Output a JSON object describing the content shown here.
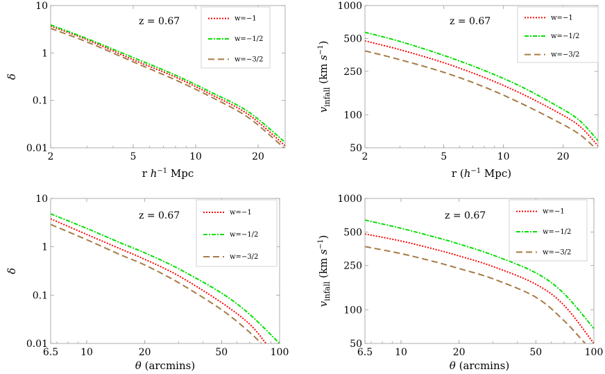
{
  "legend": [
    "w=−1",
    "w=−1/2",
    "w=−3/2"
  ],
  "series_styles": [
    {
      "color": "#ff0000",
      "dash": "2,2"
    },
    {
      "color": "#00e000",
      "dash": "6,2,2,2"
    },
    {
      "color": "#a67a45",
      "dash": "9,5"
    }
  ],
  "chart_data": [
    {
      "type": "line",
      "annotation": "z = 0.67",
      "xlabel": "r h⁻¹ Mpc",
      "ylabel": "δ",
      "xscale": "log",
      "yscale": "log",
      "xlim": [
        2,
        27
      ],
      "ylim": [
        0.01,
        10
      ],
      "xticks": [
        2,
        5,
        10,
        20
      ],
      "xticklabels": [
        "2",
        "5",
        "10",
        "20"
      ],
      "yticks": [
        0.01,
        0.1,
        1,
        10
      ],
      "yticklabels": [
        "0.01",
        "0.1",
        "1",
        "10"
      ],
      "legend_position": "top-right",
      "series": [
        {
          "name": "w=−1",
          "x": [
            2,
            3,
            5,
            8,
            12,
            18,
            27
          ],
          "y": [
            3.7,
            1.9,
            0.72,
            0.31,
            0.13,
            0.05,
            0.011
          ]
        },
        {
          "name": "w=−1/2",
          "x": [
            2,
            3,
            5,
            8,
            12,
            18,
            27
          ],
          "y": [
            3.9,
            2.0,
            0.8,
            0.34,
            0.145,
            0.057,
            0.013
          ]
        },
        {
          "name": "w=−3/2",
          "x": [
            2,
            3,
            5,
            8,
            12,
            18,
            27
          ],
          "y": [
            3.3,
            1.7,
            0.65,
            0.27,
            0.115,
            0.043,
            0.0095
          ]
        }
      ]
    },
    {
      "type": "line",
      "annotation": "z = 0.67",
      "xlabel": "r (h⁻¹ Mpc)",
      "ylabel": "v_infall (km s⁻¹)",
      "xscale": "log",
      "yscale": "log",
      "xlim": [
        2,
        30
      ],
      "ylim": [
        50,
        1000
      ],
      "xticks": [
        2,
        5,
        10,
        20
      ],
      "xticklabels": [
        "2",
        "5",
        "10",
        "20"
      ],
      "yticks": [
        50,
        100,
        250,
        500,
        1000
      ],
      "yticklabels": [
        "50",
        "100",
        "250",
        "500",
        "1000"
      ],
      "legend_position": "top-right",
      "series": [
        {
          "name": "w=−1",
          "x": [
            2,
            3,
            5,
            8,
            12,
            18,
            24,
            30
          ],
          "y": [
            475,
            395,
            300,
            220,
            160,
            110,
            80,
            52
          ]
        },
        {
          "name": "w=−1/2",
          "x": [
            2,
            3,
            5,
            8,
            12,
            18,
            24,
            30
          ],
          "y": [
            570,
            470,
            350,
            255,
            185,
            125,
            90,
            58
          ]
        },
        {
          "name": "w=−3/2",
          "x": [
            2,
            3,
            5,
            8,
            12,
            18,
            24,
            30
          ],
          "y": [
            385,
            320,
            245,
            180,
            130,
            90,
            67,
            47
          ]
        }
      ]
    },
    {
      "type": "line",
      "annotation": "z = 0.67",
      "xlabel": "θ (arcmins)",
      "ylabel": "δ",
      "xscale": "log",
      "yscale": "log",
      "xlim": [
        6.5,
        100
      ],
      "ylim": [
        0.01,
        10
      ],
      "xticks": [
        6.5,
        10,
        20,
        50,
        100
      ],
      "xticklabels": [
        "6.5",
        "10",
        "20",
        "50",
        "100"
      ],
      "yticks": [
        0.01,
        0.1,
        1,
        10
      ],
      "yticklabels": [
        "0.01",
        "0.1",
        "1",
        "10"
      ],
      "legend_position": "top-right",
      "series": [
        {
          "name": "w=−1",
          "x": [
            6.5,
            10,
            15,
            20,
            30,
            50,
            70,
            85
          ],
          "y": [
            3.8,
            1.8,
            0.9,
            0.55,
            0.25,
            0.07,
            0.025,
            0.01
          ]
        },
        {
          "name": "w=−1/2",
          "x": [
            6.5,
            10,
            15,
            20,
            30,
            50,
            70,
            100
          ],
          "y": [
            4.8,
            2.4,
            1.2,
            0.75,
            0.35,
            0.11,
            0.04,
            0.01
          ]
        },
        {
          "name": "w=−3/2",
          "x": [
            6.5,
            10,
            15,
            20,
            30,
            50,
            70,
            80
          ],
          "y": [
            2.9,
            1.4,
            0.68,
            0.42,
            0.18,
            0.05,
            0.017,
            0.01
          ]
        }
      ]
    },
    {
      "type": "line",
      "annotation": "z = 0.67",
      "xlabel": "θ (arcmins)",
      "ylabel": "v_infall (km s⁻¹)",
      "xscale": "log",
      "yscale": "log",
      "xlim": [
        6.5,
        100
      ],
      "ylim": [
        50,
        1000
      ],
      "xticks": [
        6.5,
        10,
        20,
        50,
        100
      ],
      "xticklabels": [
        "6.5",
        "10",
        "20",
        "50",
        "100"
      ],
      "yticks": [
        50,
        100,
        250,
        500,
        1000
      ],
      "yticklabels": [
        "50",
        "100",
        "250",
        "500",
        "1000"
      ],
      "legend_position": "top-right",
      "series": [
        {
          "name": "w=−1",
          "x": [
            6.5,
            10,
            15,
            20,
            30,
            50,
            70,
            100
          ],
          "y": [
            480,
            415,
            350,
            305,
            245,
            170,
            110,
            50
          ]
        },
        {
          "name": "w=−1/2",
          "x": [
            6.5,
            10,
            15,
            20,
            30,
            50,
            70,
            100
          ],
          "y": [
            640,
            540,
            450,
            390,
            310,
            215,
            140,
            68
          ]
        },
        {
          "name": "w=−3/2",
          "x": [
            6.5,
            10,
            15,
            20,
            30,
            50,
            70,
            90
          ],
          "y": [
            370,
            320,
            270,
            235,
            190,
            130,
            80,
            50
          ]
        }
      ]
    }
  ]
}
